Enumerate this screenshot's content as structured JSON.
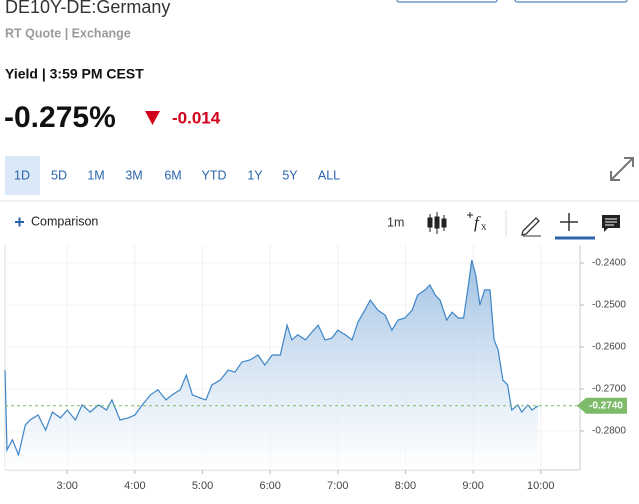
{
  "header": {
    "title": "DE10Y-DE:Germany",
    "subtitle": "RT Quote | Exchange",
    "status": "Yield | 3:59 PM CEST",
    "price": "-0.275%",
    "change": "-0.014"
  },
  "tabs": {
    "items": [
      "1D",
      "5D",
      "1M",
      "3M",
      "6M",
      "YTD",
      "1Y",
      "5Y",
      "ALL"
    ],
    "selected": "1D"
  },
  "toolbar": {
    "comparison": "Comparison",
    "interval": "1m"
  },
  "chart_data": {
    "type": "area",
    "x": [
      2.08,
      2.11,
      2.19,
      2.28,
      2.38,
      2.45,
      2.57,
      2.68,
      2.78,
      2.9,
      3.0,
      3.12,
      3.22,
      3.34,
      3.46,
      3.58,
      3.66,
      3.78,
      3.9,
      4.0,
      4.11,
      4.23,
      4.34,
      4.46,
      4.55,
      4.67,
      4.76,
      4.85,
      4.96,
      5.05,
      5.14,
      5.26,
      5.38,
      5.48,
      5.58,
      5.7,
      5.82,
      5.92,
      6.03,
      6.15,
      6.25,
      6.32,
      6.41,
      6.52,
      6.62,
      6.71,
      6.81,
      6.91,
      7.0,
      7.11,
      7.21,
      7.3,
      7.4,
      7.48,
      7.59,
      7.7,
      7.8,
      7.89,
      7.99,
      8.1,
      8.18,
      8.29,
      8.36,
      8.44,
      8.51,
      8.61,
      8.69,
      8.78,
      8.86,
      8.92,
      8.98,
      9.04,
      9.1,
      9.17,
      9.25,
      9.31,
      9.37,
      9.44,
      9.51,
      9.57,
      9.66,
      9.72,
      9.81,
      9.87,
      9.96
    ],
    "series": [
      {
        "color": "#3d85c6",
        "values": [
          -0.2655,
          -0.2845,
          -0.2821,
          -0.2857,
          -0.2786,
          -0.2774,
          -0.2762,
          -0.2798,
          -0.2755,
          -0.2769,
          -0.275,
          -0.2774,
          -0.2738,
          -0.2755,
          -0.2738,
          -0.275,
          -0.2726,
          -0.2774,
          -0.2769,
          -0.2762,
          -0.2738,
          -0.2714,
          -0.2702,
          -0.2726,
          -0.2714,
          -0.2702,
          -0.2667,
          -0.2714,
          -0.2721,
          -0.2726,
          -0.269,
          -0.2679,
          -0.2655,
          -0.266,
          -0.2636,
          -0.2631,
          -0.2619,
          -0.2643,
          -0.2619,
          -0.2619,
          -0.2548,
          -0.2583,
          -0.2571,
          -0.2583,
          -0.2564,
          -0.2548,
          -0.2583,
          -0.2579,
          -0.256,
          -0.2571,
          -0.2583,
          -0.254,
          -0.2512,
          -0.2488,
          -0.2512,
          -0.2524,
          -0.256,
          -0.2536,
          -0.2531,
          -0.2512,
          -0.2476,
          -0.2464,
          -0.2452,
          -0.2476,
          -0.2488,
          -0.2536,
          -0.2517,
          -0.2531,
          -0.2531,
          -0.2464,
          -0.2393,
          -0.2429,
          -0.25,
          -0.2464,
          -0.2464,
          -0.2583,
          -0.2607,
          -0.2679,
          -0.269,
          -0.275,
          -0.2738,
          -0.2755,
          -0.2738,
          -0.275,
          -0.274
        ]
      }
    ],
    "xlim": [
      2.08,
      10.58
    ],
    "xticks": [
      {
        "value": 3,
        "label": "3:00"
      },
      {
        "value": 4,
        "label": "4:00"
      },
      {
        "value": 5,
        "label": "5:00"
      },
      {
        "value": 6,
        "label": "6:00"
      },
      {
        "value": 7,
        "label": "7:00"
      },
      {
        "value": 8,
        "label": "8:00"
      },
      {
        "value": 9,
        "label": "9:00"
      },
      {
        "value": 10,
        "label": "10:00"
      }
    ],
    "ylim": [
      -0.2893,
      -0.2357
    ],
    "yticks": [
      {
        "value": -0.24,
        "label": "-0.2400"
      },
      {
        "value": -0.25,
        "label": "-0.2500"
      },
      {
        "value": -0.26,
        "label": "-0.2600"
      },
      {
        "value": -0.27,
        "label": "-0.2700"
      },
      {
        "value": -0.28,
        "label": "-0.2800"
      }
    ],
    "last_value": {
      "value": -0.274,
      "label": "-0.2740"
    },
    "last_color": "#7dbb6b"
  }
}
